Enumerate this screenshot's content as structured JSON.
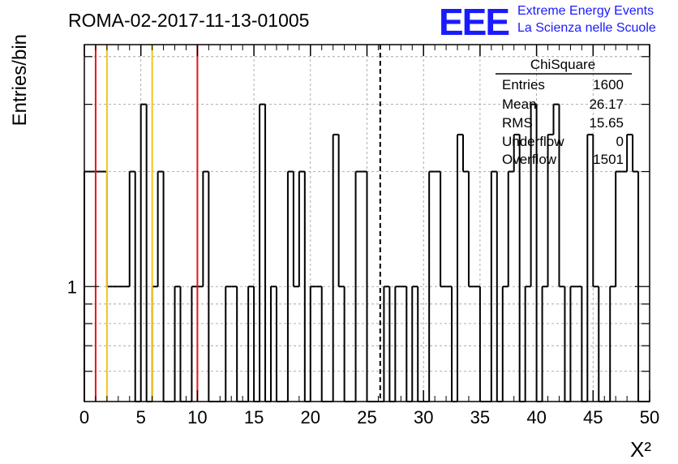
{
  "header": {
    "title": "ROMA-02-2017-11-13-01005",
    "logo_text": "EEE",
    "brand_line1": "Extreme Energy Events",
    "brand_line2": "La Scienza nelle Scuole",
    "brand_color": "#1a1aff"
  },
  "stats": {
    "name": "ChiSquare",
    "rows": [
      {
        "label": "Entries",
        "value": "1600"
      },
      {
        "label": "Mean",
        "value": "26.17"
      },
      {
        "label": "RMS",
        "value": "15.65"
      },
      {
        "label": "Underflow",
        "value": "0"
      },
      {
        "label": "Overflow",
        "value": "1501"
      }
    ]
  },
  "chart_data": {
    "type": "bar",
    "histogram": true,
    "xlabel": "X²",
    "ylabel": "Entries/bin",
    "xlim": [
      0,
      50
    ],
    "ylim": [
      0.5,
      4.3
    ],
    "log_y": true,
    "grid": true,
    "x_ticks": [
      "0",
      "5",
      "10",
      "15",
      "20",
      "25",
      "30",
      "35",
      "40",
      "45",
      "50"
    ],
    "y_ticks": [
      "1"
    ],
    "bin_width": 0.5,
    "bins": [
      [
        0.0,
        2
      ],
      [
        0.5,
        2
      ],
      [
        1.0,
        2
      ],
      [
        1.5,
        2
      ],
      [
        2.0,
        1
      ],
      [
        2.5,
        1
      ],
      [
        3.0,
        1
      ],
      [
        3.5,
        1
      ],
      [
        4.0,
        2
      ],
      [
        4.5,
        0
      ],
      [
        5.0,
        3
      ],
      [
        5.5,
        0
      ],
      [
        6.0,
        1
      ],
      [
        6.5,
        2
      ],
      [
        7.0,
        0
      ],
      [
        7.5,
        0
      ],
      [
        8.0,
        1
      ],
      [
        8.5,
        0
      ],
      [
        9.0,
        0
      ],
      [
        9.5,
        1
      ],
      [
        10.0,
        1
      ],
      [
        10.5,
        2
      ],
      [
        11.0,
        0
      ],
      [
        11.5,
        0
      ],
      [
        12.0,
        0
      ],
      [
        12.5,
        1
      ],
      [
        13.0,
        1
      ],
      [
        13.5,
        0
      ],
      [
        14.0,
        0
      ],
      [
        14.5,
        1
      ],
      [
        15.0,
        0
      ],
      [
        15.5,
        3
      ],
      [
        16.0,
        0
      ],
      [
        16.5,
        1
      ],
      [
        17.0,
        0
      ],
      [
        17.5,
        0
      ],
      [
        18.0,
        2
      ],
      [
        18.5,
        1
      ],
      [
        19.0,
        2
      ],
      [
        19.5,
        0
      ],
      [
        20.0,
        1
      ],
      [
        20.5,
        1
      ],
      [
        21.0,
        0
      ],
      [
        21.5,
        0
      ],
      [
        22.0,
        2.5
      ],
      [
        22.5,
        1
      ],
      [
        23.0,
        0
      ],
      [
        23.5,
        0
      ],
      [
        24.0,
        2
      ],
      [
        24.5,
        2
      ],
      [
        25.0,
        0
      ],
      [
        25.5,
        0
      ],
      [
        26.0,
        0
      ],
      [
        26.5,
        1
      ],
      [
        27.0,
        0
      ],
      [
        27.5,
        1
      ],
      [
        28.0,
        1
      ],
      [
        28.5,
        0
      ],
      [
        29.0,
        1
      ],
      [
        29.5,
        0
      ],
      [
        30.0,
        0
      ],
      [
        30.5,
        2
      ],
      [
        31.0,
        2
      ],
      [
        31.5,
        1
      ],
      [
        32.0,
        1
      ],
      [
        32.5,
        0
      ],
      [
        33.0,
        2.5
      ],
      [
        33.5,
        2
      ],
      [
        34.0,
        1
      ],
      [
        34.5,
        1
      ],
      [
        35.0,
        0
      ],
      [
        35.5,
        0
      ],
      [
        36.0,
        2
      ],
      [
        36.5,
        0
      ],
      [
        37.0,
        1
      ],
      [
        37.5,
        2
      ],
      [
        38.0,
        2.5
      ],
      [
        38.5,
        0
      ],
      [
        39.0,
        1
      ],
      [
        39.5,
        3
      ],
      [
        40.0,
        0
      ],
      [
        40.5,
        1
      ],
      [
        41.0,
        2.5
      ],
      [
        41.5,
        3
      ],
      [
        42.0,
        1
      ],
      [
        42.5,
        0
      ],
      [
        43.0,
        1
      ],
      [
        43.5,
        1
      ],
      [
        44.0,
        0
      ],
      [
        44.5,
        2.5
      ],
      [
        45.0,
        1
      ],
      [
        45.5,
        0
      ],
      [
        46.0,
        0
      ],
      [
        46.5,
        1
      ],
      [
        47.0,
        2
      ],
      [
        47.5,
        2
      ],
      [
        48.0,
        2.5
      ],
      [
        48.5,
        2
      ],
      [
        49.0,
        0
      ],
      [
        49.5,
        0
      ]
    ],
    "markers": [
      {
        "x": 1,
        "color": "#e8141e",
        "style": "solid"
      },
      {
        "x": 2,
        "color": "#f5c518",
        "style": "solid"
      },
      {
        "x": 6,
        "color": "#f5c518",
        "style": "solid"
      },
      {
        "x": 10,
        "color": "#e8141e",
        "style": "solid"
      },
      {
        "x": 26.17,
        "color": "#000000",
        "style": "dashed"
      }
    ]
  }
}
